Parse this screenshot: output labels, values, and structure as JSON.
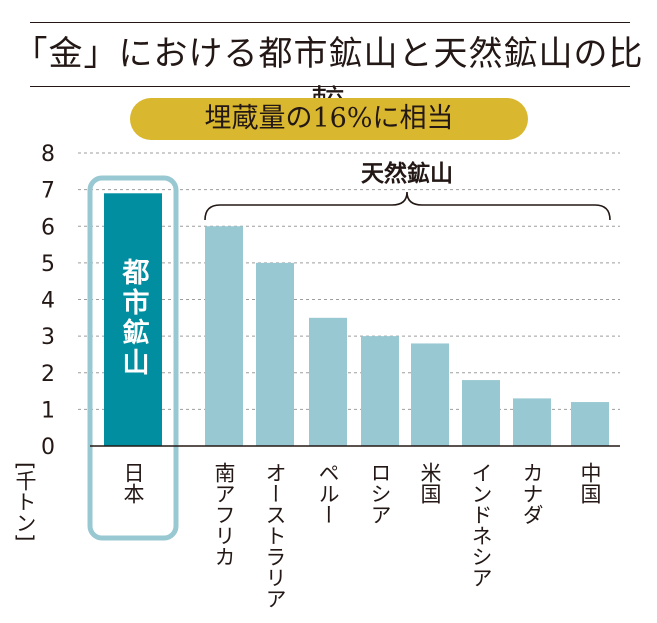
{
  "header": {
    "title": "「金」における都市鉱山と天然鉱山の比較",
    "banner": "埋蔵量の16%に相当"
  },
  "colors": {
    "urban_bar": "#008ea0",
    "natural_bar": "#98c8d2",
    "highlight_frame": "#98c8d2",
    "banner": "#d9b82f",
    "text": "#231815"
  },
  "chart_data": {
    "type": "bar",
    "categories": [
      "日本",
      "南アフリカ",
      "オーストラリア",
      "ペルー",
      "ロシア",
      "米国",
      "インドネシア",
      "カナダ",
      "中国"
    ],
    "values": [
      6.9,
      6.0,
      5.0,
      3.5,
      3.0,
      2.8,
      1.8,
      1.3,
      1.2
    ],
    "ylabel": "[千トン]",
    "ylim": [
      0,
      8
    ],
    "yticks": [
      0,
      1,
      2,
      3,
      4,
      5,
      6,
      7,
      8
    ],
    "grid": true,
    "annotations": {
      "urban_label": "都市鉱山",
      "natural_label": "天然鉱山"
    }
  }
}
